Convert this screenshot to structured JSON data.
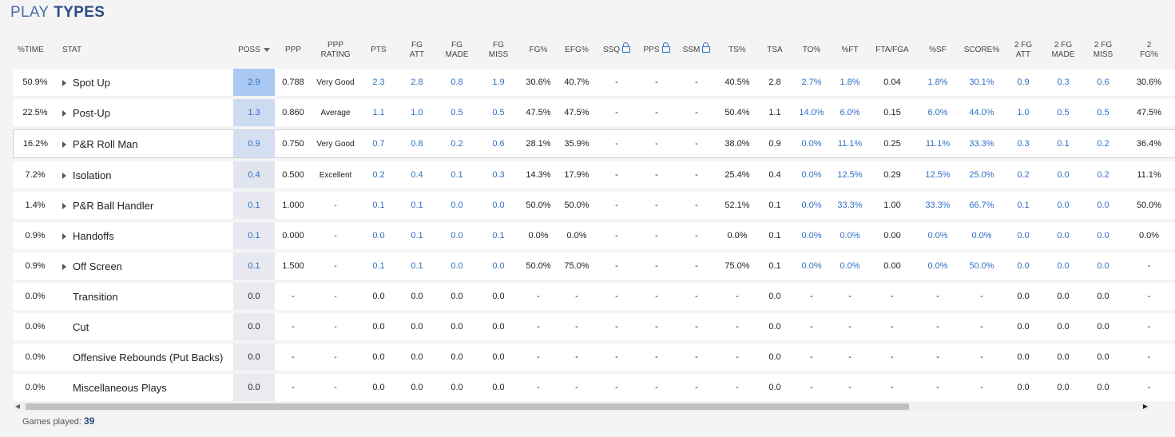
{
  "title": {
    "part1": "PLAY",
    "part2": "TYPES"
  },
  "columns": [
    {
      "label": "%TIME"
    },
    {
      "label": "STAT"
    },
    {
      "label": "POSS",
      "sort": true
    },
    {
      "label": "PPP"
    },
    {
      "label": "PPP\nRATING"
    },
    {
      "label": "PTS"
    },
    {
      "label": "FG\nATT"
    },
    {
      "label": "FG\nMADE"
    },
    {
      "label": "FG\nMISS"
    },
    {
      "label": "FG%"
    },
    {
      "label": "EFG%"
    },
    {
      "label": "SSQ",
      "lock": true
    },
    {
      "label": "PPS",
      "lock": true
    },
    {
      "label": "SSM",
      "lock": true
    },
    {
      "label": "TS%"
    },
    {
      "label": "TSA"
    },
    {
      "label": "TO%"
    },
    {
      "label": "%FT"
    },
    {
      "label": "FTA/FGA"
    },
    {
      "label": "%SF"
    },
    {
      "label": "SCORE%"
    },
    {
      "label": "2 FG\nATT"
    },
    {
      "label": "2 FG\nMADE"
    },
    {
      "label": "2 FG\nMISS"
    },
    {
      "label": "2\nFG%"
    }
  ],
  "rows": [
    {
      "name": "Spot Up",
      "expand": true,
      "cells": [
        "50.9%",
        "2.9",
        "0.788",
        "Very Good",
        "2.3",
        "2.8",
        "0.8",
        "1.9",
        "30.6%",
        "40.7%",
        "-",
        "-",
        "-",
        "40.5%",
        "2.8",
        "2.7%",
        "1.8%",
        "0.04",
        "1.8%",
        "30.1%",
        "0.9",
        "0.3",
        "0.6",
        "30.6%"
      ]
    },
    {
      "name": "Post-Up",
      "expand": true,
      "cells": [
        "22.5%",
        "1.3",
        "0.860",
        "Average",
        "1.1",
        "1.0",
        "0.5",
        "0.5",
        "47.5%",
        "47.5%",
        "-",
        "-",
        "-",
        "50.4%",
        "1.1",
        "14.0%",
        "6.0%",
        "0.15",
        "6.0%",
        "44.0%",
        "1.0",
        "0.5",
        "0.5",
        "47.5%"
      ]
    },
    {
      "name": "P&R Roll Man",
      "expand": true,
      "cells": [
        "16.2%",
        "0.9",
        "0.750",
        "Very Good",
        "0.7",
        "0.8",
        "0.2",
        "0.6",
        "28.1%",
        "35.9%",
        "-",
        "-",
        "-",
        "38.0%",
        "0.9",
        "0.0%",
        "11.1%",
        "0.25",
        "11.1%",
        "33.3%",
        "0.3",
        "0.1",
        "0.2",
        "36.4%"
      ]
    },
    {
      "name": "Isolation",
      "expand": true,
      "cells": [
        "7.2%",
        "0.4",
        "0.500",
        "Excellent",
        "0.2",
        "0.4",
        "0.1",
        "0.3",
        "14.3%",
        "17.9%",
        "-",
        "-",
        "-",
        "25.4%",
        "0.4",
        "0.0%",
        "12.5%",
        "0.29",
        "12.5%",
        "25.0%",
        "0.2",
        "0.0",
        "0.2",
        "11.1%"
      ]
    },
    {
      "name": "P&R Ball Handler",
      "expand": true,
      "cells": [
        "1.4%",
        "0.1",
        "1.000",
        "-",
        "0.1",
        "0.1",
        "0.0",
        "0.0",
        "50.0%",
        "50.0%",
        "-",
        "-",
        "-",
        "52.1%",
        "0.1",
        "0.0%",
        "33.3%",
        "1.00",
        "33.3%",
        "66.7%",
        "0.1",
        "0.0",
        "0.0",
        "50.0%"
      ]
    },
    {
      "name": "Handoffs",
      "expand": true,
      "cells": [
        "0.9%",
        "0.1",
        "0.000",
        "-",
        "0.0",
        "0.1",
        "0.0",
        "0.1",
        "0.0%",
        "0.0%",
        "-",
        "-",
        "-",
        "0.0%",
        "0.1",
        "0.0%",
        "0.0%",
        "0.00",
        "0.0%",
        "0.0%",
        "0.0",
        "0.0",
        "0.0",
        "0.0%"
      ]
    },
    {
      "name": "Off Screen",
      "expand": true,
      "cells": [
        "0.9%",
        "0.1",
        "1.500",
        "-",
        "0.1",
        "0.1",
        "0.0",
        "0.0",
        "50.0%",
        "75.0%",
        "-",
        "-",
        "-",
        "75.0%",
        "0.1",
        "0.0%",
        "0.0%",
        "0.00",
        "0.0%",
        "50.0%",
        "0.0",
        "0.0",
        "0.0",
        "-"
      ]
    },
    {
      "name": "Transition",
      "expand": false,
      "cells": [
        "0.0%",
        "0.0",
        "-",
        "-",
        "0.0",
        "0.0",
        "0.0",
        "0.0",
        "-",
        "-",
        "-",
        "-",
        "-",
        "-",
        "0.0",
        "-",
        "-",
        "-",
        "-",
        "-",
        "0.0",
        "0.0",
        "0.0",
        "-"
      ]
    },
    {
      "name": "Cut",
      "expand": false,
      "cells": [
        "0.0%",
        "0.0",
        "-",
        "-",
        "0.0",
        "0.0",
        "0.0",
        "0.0",
        "-",
        "-",
        "-",
        "-",
        "-",
        "-",
        "0.0",
        "-",
        "-",
        "-",
        "-",
        "-",
        "0.0",
        "0.0",
        "0.0",
        "-"
      ]
    },
    {
      "name": "Offensive Rebounds (Put Backs)",
      "expand": false,
      "cells": [
        "0.0%",
        "0.0",
        "-",
        "-",
        "0.0",
        "0.0",
        "0.0",
        "0.0",
        "-",
        "-",
        "-",
        "-",
        "-",
        "-",
        "0.0",
        "-",
        "-",
        "-",
        "-",
        "-",
        "0.0",
        "0.0",
        "0.0",
        "-"
      ]
    },
    {
      "name": "Miscellaneous Plays",
      "expand": false,
      "cells": [
        "0.0%",
        "0.0",
        "-",
        "-",
        "0.0",
        "0.0",
        "0.0",
        "0.0",
        "-",
        "-",
        "-",
        "-",
        "-",
        "-",
        "0.0",
        "-",
        "-",
        "-",
        "-",
        "-",
        "0.0",
        "0.0",
        "0.0",
        "-"
      ]
    }
  ],
  "link_columns": [
    1,
    4,
    5,
    6,
    7,
    15,
    16,
    18,
    19,
    20,
    21,
    22
  ],
  "poss_levels": [
    1.0,
    0.45,
    0.31,
    0.14,
    0.03,
    0.03,
    0.03,
    0,
    0,
    0,
    0
  ],
  "highlight_row": 2,
  "colors": {
    "link": "#2f6fc5",
    "poss_max": "#a9c8f2",
    "poss_base": "#eaeaf0"
  },
  "footer": {
    "label": "Games played:",
    "value": "39"
  }
}
